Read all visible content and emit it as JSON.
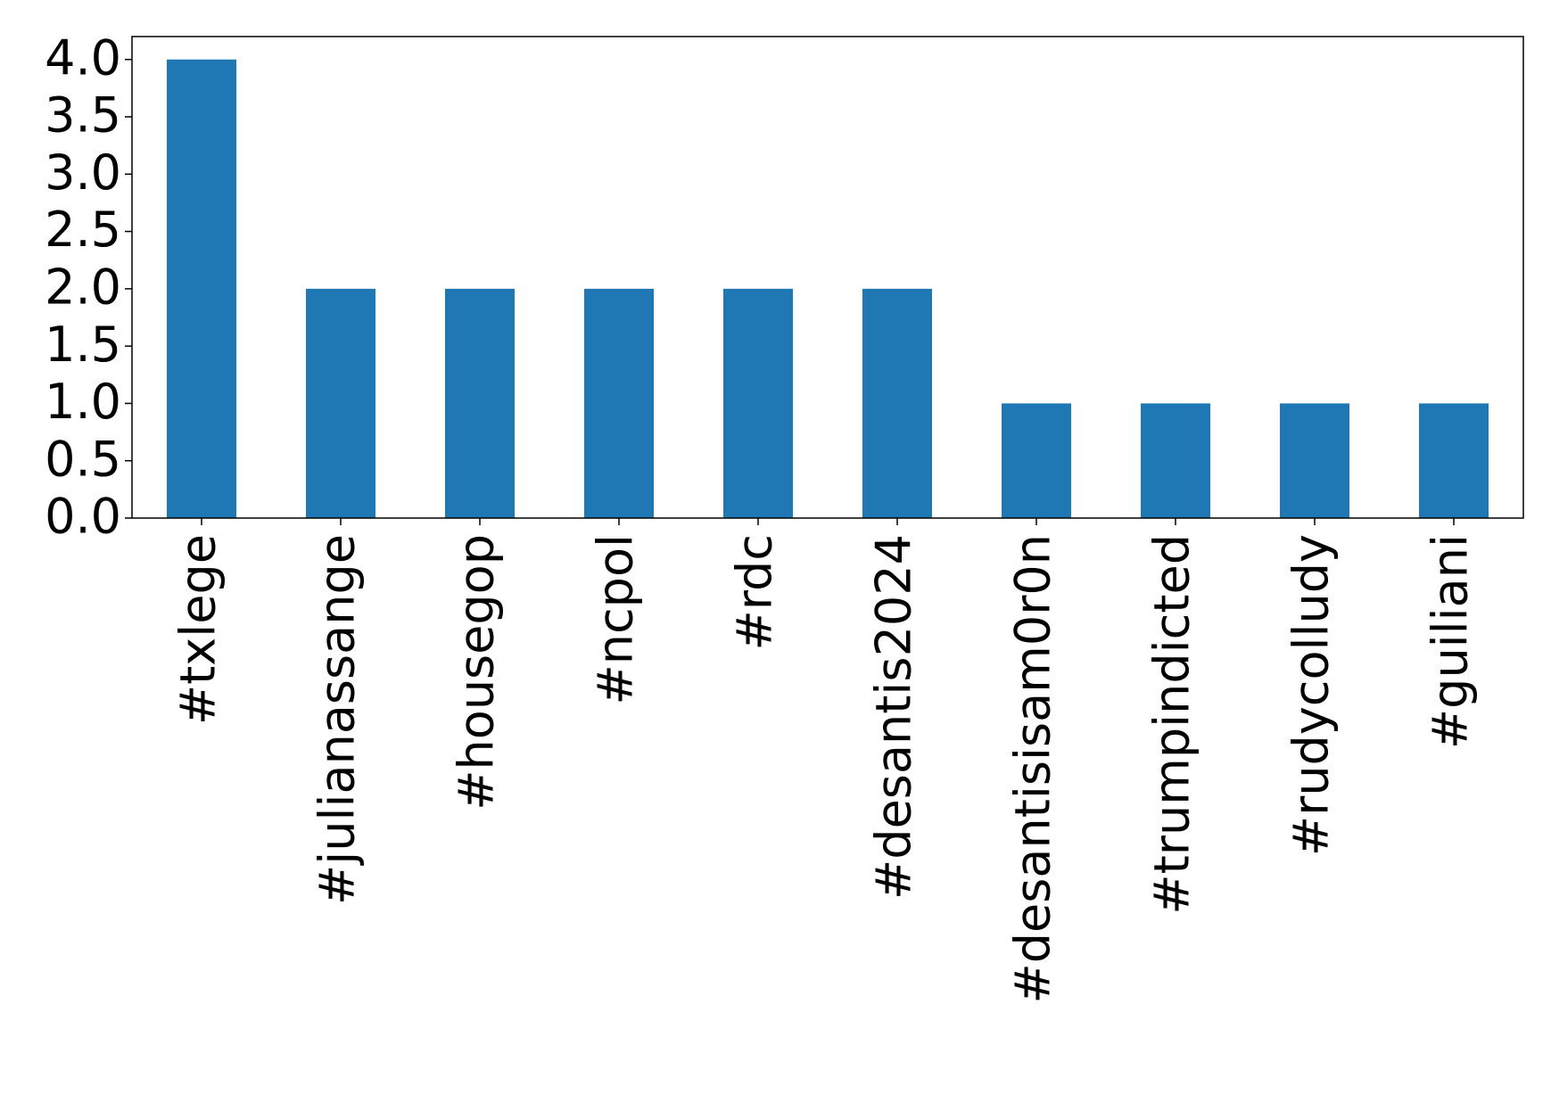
{
  "chart_data": {
    "type": "bar",
    "categories": [
      "#txlege",
      "#julianassange",
      "#housegop",
      "#ncpol",
      "#rdc",
      "#desantis2024",
      "#desantisisam0r0n",
      "#trumpindicted",
      "#rudycolludy",
      "#guiliani"
    ],
    "values": [
      4,
      2,
      2,
      2,
      2,
      2,
      1,
      1,
      1,
      1
    ],
    "color": "#1f77b4",
    "ylim": [
      0,
      4.2
    ],
    "yticks": [
      {
        "value": 0,
        "label": "0.0"
      },
      {
        "value": 0.5,
        "label": "0.5"
      },
      {
        "value": 1,
        "label": "1.0"
      },
      {
        "value": 1.5,
        "label": "1.5"
      },
      {
        "value": 2,
        "label": "2.0"
      },
      {
        "value": 2.5,
        "label": "2.5"
      },
      {
        "value": 3,
        "label": "3.0"
      },
      {
        "value": 3.5,
        "label": "3.5"
      },
      {
        "value": 4,
        "label": "4.0"
      }
    ],
    "grid": false
  }
}
